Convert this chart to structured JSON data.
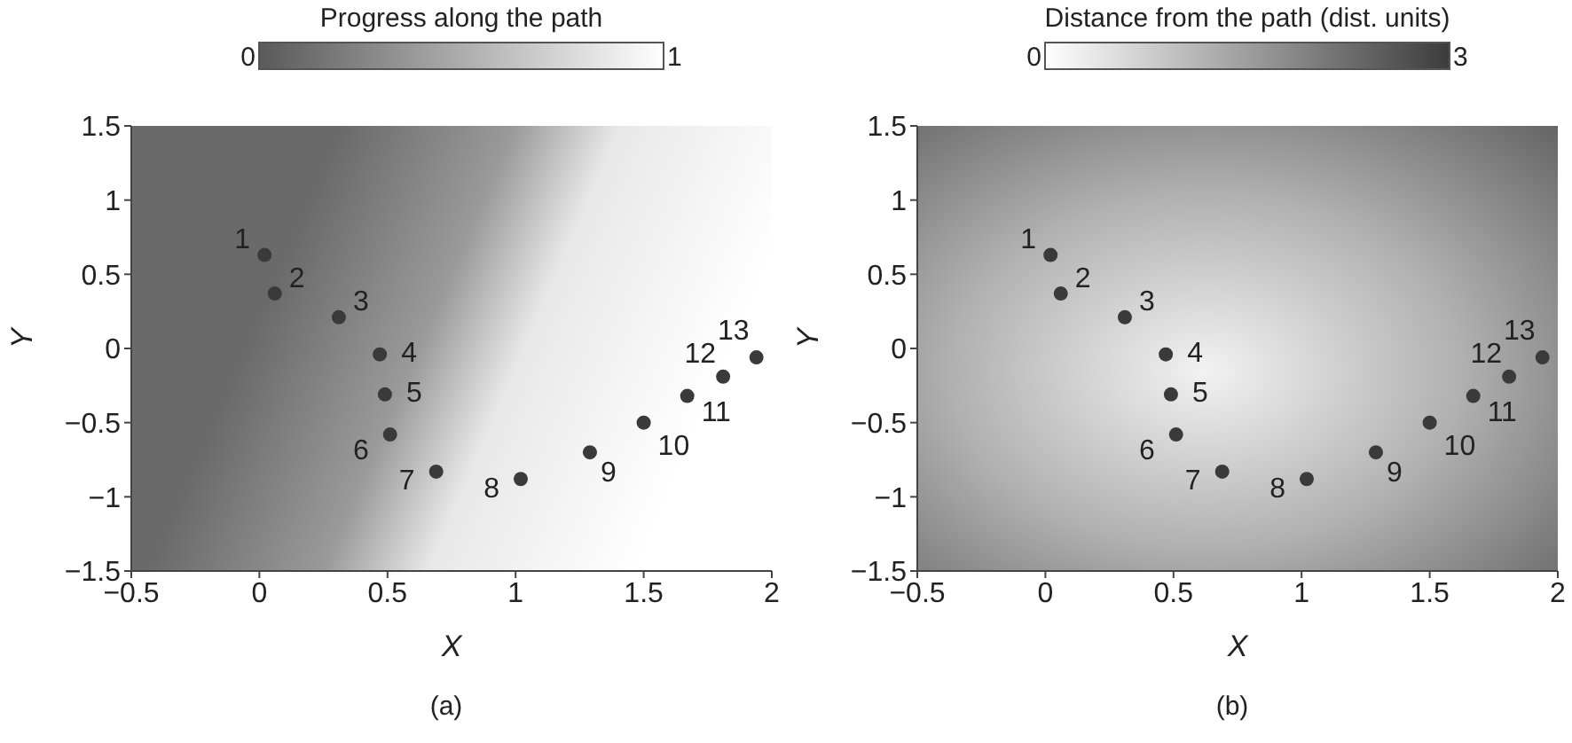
{
  "chart_data": [
    {
      "type": "scatter",
      "clabel": "Progress along the path",
      "xlabel": "X",
      "ylabel": "Y",
      "xlim": [
        -0.5,
        2
      ],
      "xticks": [
        -0.5,
        0,
        0.5,
        1,
        1.5,
        2
      ],
      "ylim": [
        -1.5,
        1.5
      ],
      "yticks": [
        -1.5,
        -1,
        -0.5,
        0,
        0.5,
        1,
        1.5
      ],
      "grid": false,
      "legend": false,
      "marker": "circle",
      "x": [
        0.02,
        0.06,
        0.31,
        0.47,
        0.49,
        0.51,
        0.69,
        1.02,
        1.29,
        1.5,
        1.67,
        1.81,
        1.94
      ],
      "series": [
        {
          "color": "#3a3a3a",
          "values": [
            0.63,
            0.37,
            0.21,
            -0.04,
            -0.31,
            -0.58,
            -0.83,
            -0.88,
            -0.7,
            -0.5,
            -0.32,
            -0.19,
            -0.06
          ]
        }
      ],
      "annotations": [
        {
          "text": "1",
          "x": 0.02,
          "y": 0.63
        },
        {
          "text": "2",
          "x": 0.06,
          "y": 0.37
        },
        {
          "text": "3",
          "x": 0.31,
          "y": 0.21
        },
        {
          "text": "4",
          "x": 0.47,
          "y": -0.04
        },
        {
          "text": "5",
          "x": 0.49,
          "y": -0.31
        },
        {
          "text": "6",
          "x": 0.51,
          "y": -0.58
        },
        {
          "text": "7",
          "x": 0.69,
          "y": -0.83
        },
        {
          "text": "8",
          "x": 1.02,
          "y": -0.88
        },
        {
          "text": "9",
          "x": 1.29,
          "y": -0.7
        },
        {
          "text": "10",
          "x": 1.5,
          "y": -0.5
        },
        {
          "text": "11",
          "x": 1.67,
          "y": -0.32
        },
        {
          "text": "12",
          "x": 1.81,
          "y": -0.19
        },
        {
          "text": "13",
          "x": 1.94,
          "y": -0.06
        },
        "0",
        "1",
        "(a)"
      ]
    },
    {
      "type": "scatter",
      "clabel": "Distance from the path (dist. units)",
      "xlabel": "X",
      "ylabel": "Y",
      "xlim": [
        -0.5,
        2
      ],
      "xticks": [
        -0.5,
        0,
        0.5,
        1,
        1.5,
        2
      ],
      "ylim": [
        -1.5,
        1.5
      ],
      "yticks": [
        -1.5,
        -1,
        -0.5,
        0,
        0.5,
        1,
        1.5
      ],
      "grid": false,
      "legend": false,
      "marker": "circle",
      "x": [
        0.02,
        0.06,
        0.31,
        0.47,
        0.49,
        0.51,
        0.69,
        1.02,
        1.29,
        1.5,
        1.67,
        1.81,
        1.94
      ],
      "series": [
        {
          "color": "#3a3a3a",
          "values": [
            0.63,
            0.37,
            0.21,
            -0.04,
            -0.31,
            -0.58,
            -0.83,
            -0.88,
            -0.7,
            -0.5,
            -0.32,
            -0.19,
            -0.06
          ]
        }
      ],
      "annotations": [
        {
          "text": "1",
          "x": 0.02,
          "y": 0.63
        },
        {
          "text": "2",
          "x": 0.06,
          "y": 0.37
        },
        {
          "text": "3",
          "x": 0.31,
          "y": 0.21
        },
        {
          "text": "4",
          "x": 0.47,
          "y": -0.04
        },
        {
          "text": "5",
          "x": 0.49,
          "y": -0.31
        },
        {
          "text": "6",
          "x": 0.51,
          "y": -0.58
        },
        {
          "text": "7",
          "x": 0.69,
          "y": -0.83
        },
        {
          "text": "8",
          "x": 1.02,
          "y": -0.88
        },
        {
          "text": "9",
          "x": 1.29,
          "y": -0.7
        },
        {
          "text": "10",
          "x": 1.5,
          "y": -0.5
        },
        {
          "text": "11",
          "x": 1.67,
          "y": -0.32
        },
        {
          "text": "12",
          "x": 1.81,
          "y": -0.19
        },
        {
          "text": "13",
          "x": 1.94,
          "y": -0.06
        },
        "0",
        "3",
        "(b)"
      ]
    }
  ]
}
